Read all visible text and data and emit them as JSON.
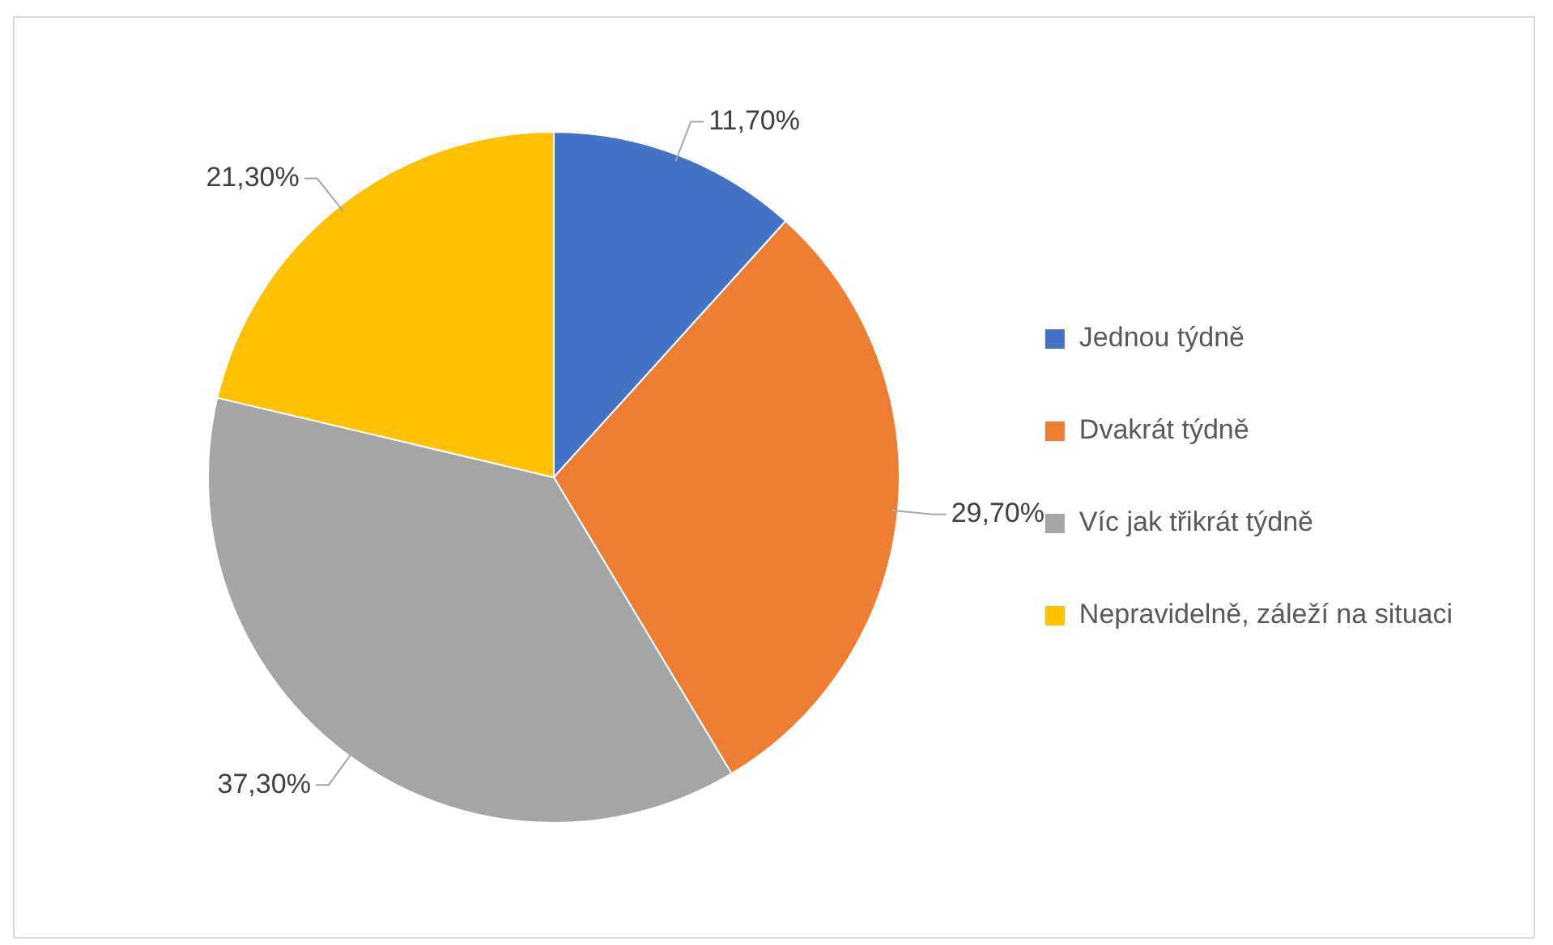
{
  "chart_data": {
    "type": "pie",
    "categories": [
      "Jednou týdně",
      "Dvakrát týdně",
      "Víc jak třikrát týdně",
      "Nepravidelně, záleží na situaci"
    ],
    "values": [
      11.7,
      29.7,
      37.3,
      21.3
    ],
    "value_labels": [
      "11,70%",
      "29,70%",
      "37,30%",
      "21,30%"
    ],
    "colors": [
      "#4472c4",
      "#ed7d31",
      "#a5a5a5",
      "#ffc000"
    ],
    "legend": "right"
  }
}
